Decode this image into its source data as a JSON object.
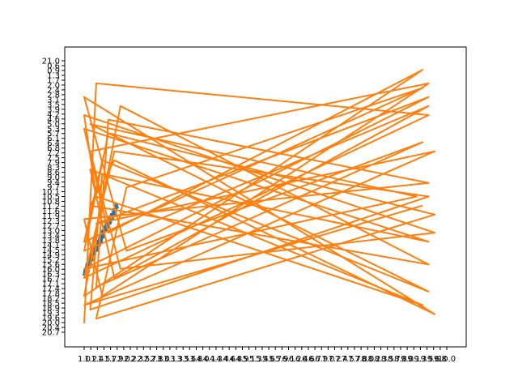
{
  "chart_data": {
    "type": "line",
    "title": "",
    "xlabel": "",
    "ylabel": "",
    "legend": "none",
    "grid": false,
    "xlim": [
      0,
      60
    ],
    "ylim": [
      0,
      60
    ],
    "colors": {
      "axes": "#000000",
      "background": "#ffffff"
    },
    "x_tick_labels": [
      "1.0",
      "1.2",
      "1.4",
      "1.5",
      "1.7",
      "1.9",
      "2.0",
      "2.2",
      "2.3",
      "2.5",
      "2.7",
      "2.8",
      "3.0",
      "3.1",
      "3.3",
      "3.5",
      "3.6",
      "3.8",
      "4.0",
      "4.1",
      "4.3",
      "4.4",
      "4.6",
      "4.8",
      "4.9",
      "5.1",
      "5.3",
      "5.4",
      "5.6",
      "5.7",
      "5.9",
      "6.1",
      "6.2",
      "6.4",
      "6.6",
      "6.7",
      "6.9",
      "7.0",
      "7.2",
      "7.4",
      "7.5",
      "7.7",
      "7.8",
      "8.0",
      "8.2",
      "8.3",
      "8.5",
      "8.7",
      "8.8",
      "9.0",
      "9.1",
      "9.3",
      "9.5",
      "9.6",
      "9.8",
      "10.0"
    ],
    "y_tick_labels": [
      "20.7",
      "20.4",
      "20.0",
      "19.6",
      "19.3",
      "18.9",
      "18.5",
      "18.2",
      "17.8",
      "17.4",
      "17.1",
      "16.7",
      "16.3",
      "16.0",
      "15.6",
      "15.2",
      "14.9",
      "14.5",
      "14.1",
      "13.8",
      "13.4",
      "13.0",
      "12.7",
      "12.3",
      "11.9",
      "11.6",
      "11.2",
      "10.8",
      "10.5",
      "10.1",
      "9.7",
      "9.4",
      "9.0",
      "8.6",
      "8.3",
      "7.9",
      "7.5",
      "7.2",
      "6.8",
      "6.4",
      "6.1",
      "5.7",
      "5.3",
      "5.0",
      "4.6",
      "4.2",
      "3.9",
      "3.5",
      "3.1",
      "2.8",
      "2.4",
      "2.0",
      "1.7",
      "1.3",
      "0.9",
      "0.6",
      "21.0"
    ],
    "series": [
      {
        "color": "#1f77b4",
        "x": [
          0,
          0.2,
          0.3,
          0.5,
          0.6,
          0.8,
          1.0,
          1.1,
          1.3,
          1.5,
          1.7,
          1.9,
          2.1,
          2.3,
          2.5,
          2.6,
          2.8,
          3.0,
          3.2,
          3.3,
          3.5,
          3.7,
          3.9,
          4.1,
          4.3,
          4.5,
          4.7,
          4.9,
          5.1,
          5.3,
          5.5
        ],
        "y": [
          12.5,
          14.0,
          13.2,
          15.1,
          14.3,
          16.2,
          15.0,
          17.1,
          16.0,
          18.3,
          17.2,
          19.0,
          18.1,
          20.1,
          19.2,
          21.0,
          20.0,
          22.3,
          21.1,
          23.2,
          22.4,
          24.3,
          23.2,
          25.3,
          24.1,
          26.0,
          25.2,
          27.1,
          26.0,
          28.2,
          27.3
        ]
      },
      {
        "color": "#ff7f0e",
        "x": [
          0,
          2,
          57,
          0,
          5,
          57,
          1,
          3,
          57,
          0,
          4,
          56,
          0,
          6,
          57,
          1,
          5,
          58,
          0,
          7,
          56,
          2,
          4,
          57,
          0,
          3,
          57,
          1,
          6,
          58,
          0,
          2,
          56,
          1,
          5,
          57,
          0,
          4,
          58,
          2,
          7,
          56,
          0,
          3,
          57,
          1,
          55,
          0,
          57,
          2,
          58,
          0,
          56
        ],
        "y": [
          2,
          55,
          48,
          12,
          40,
          30,
          5,
          35,
          20,
          45,
          22,
          58,
          8,
          50,
          15,
          28,
          38,
          4,
          52,
          18,
          42,
          10,
          47,
          33,
          25,
          8,
          55,
          40,
          14,
          22,
          48,
          30,
          6,
          36,
          12,
          50,
          18,
          44,
          26,
          3,
          32,
          54,
          20,
          38,
          9,
          46,
          30,
          14,
          52,
          24,
          40,
          6,
          28
        ]
      }
    ]
  }
}
